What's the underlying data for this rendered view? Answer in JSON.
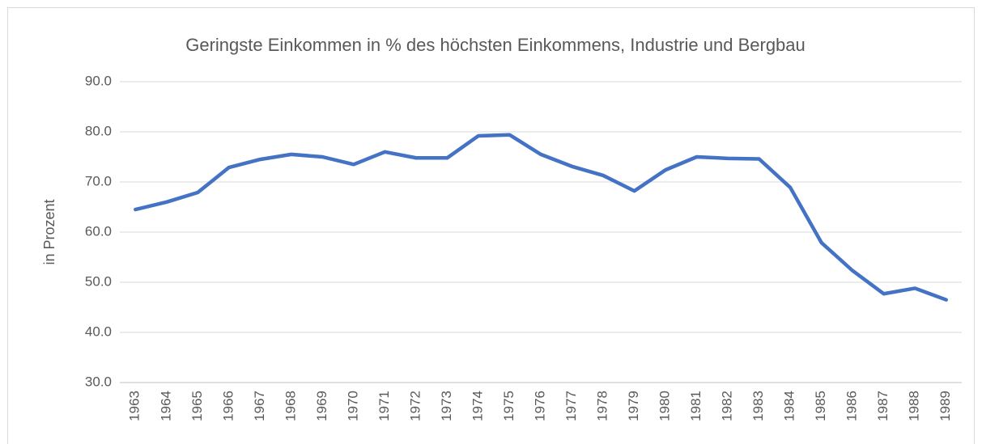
{
  "chart_data": {
    "type": "line",
    "title": "Geringste Einkommen in % des höchsten Einkommens, Industrie und Bergbau",
    "y_label": "in Prozent",
    "categories": [
      "1963",
      "1964",
      "1965",
      "1966",
      "1967",
      "1968",
      "1969",
      "1970",
      "1971",
      "1972",
      "1973",
      "1974",
      "1975",
      "1976",
      "1977",
      "1978",
      "1979",
      "1980",
      "1981",
      "1982",
      "1983",
      "1984",
      "1985",
      "1986",
      "1987",
      "1988",
      "1989"
    ],
    "series": [
      {
        "name": "Geringste Einkommen",
        "color": "#4472c4",
        "values": [
          64.5,
          66.0,
          67.9,
          72.9,
          74.5,
          75.5,
          75.0,
          73.5,
          76.0,
          74.8,
          74.8,
          79.2,
          79.4,
          75.5,
          73.1,
          71.3,
          68.2,
          72.4,
          75.0,
          74.7,
          74.6,
          68.9,
          57.9,
          52.3,
          47.7,
          48.8,
          46.5
        ]
      }
    ],
    "ylim": [
      30,
      90
    ],
    "yticks": [
      {
        "value": 30,
        "label": "30.0"
      },
      {
        "value": 40,
        "label": "40.0"
      },
      {
        "value": 50,
        "label": "50.0"
      },
      {
        "value": 60,
        "label": "60.0"
      },
      {
        "value": 70,
        "label": "70.0"
      },
      {
        "value": 80,
        "label": "80.0"
      },
      {
        "value": 90,
        "label": "90.0"
      }
    ],
    "grid": true
  }
}
